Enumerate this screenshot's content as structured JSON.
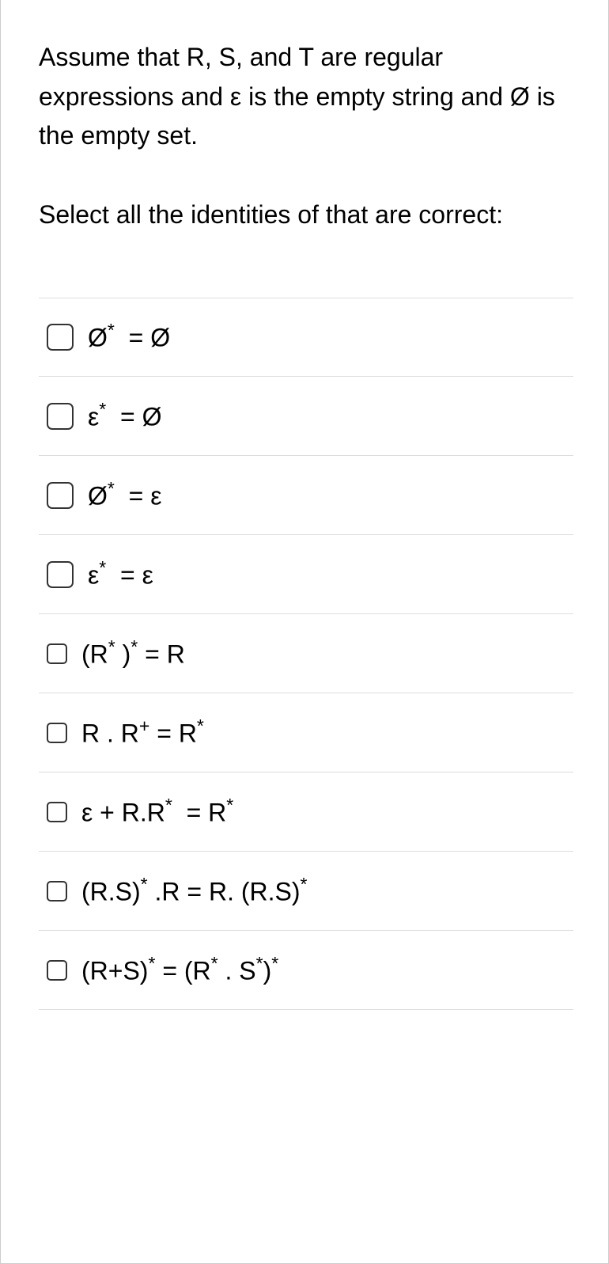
{
  "question": {
    "paragraph1": "Assume that R, S, and T are regular expressions and  ε is the empty string and Ø is the empty set.",
    "paragraph2": "Select all the identities of that are correct:"
  },
  "options": [
    {
      "html": "Ø<span class=\"sup\">*</span>&nbsp; = Ø",
      "checkbox_size": "large"
    },
    {
      "html": "ε<span class=\"sup\">*</span>&nbsp; = Ø",
      "checkbox_size": "large"
    },
    {
      "html": "Ø<span class=\"sup\">*</span>&nbsp; = ε",
      "checkbox_size": "large"
    },
    {
      "html": "ε<span class=\"sup\">*</span>&nbsp; = ε",
      "checkbox_size": "large"
    },
    {
      "html": "(R<span class=\"sup\">*</span> )<span class=\"sup\">*</span>&nbsp;= R",
      "checkbox_size": "small"
    },
    {
      "html": "R . R<span class=\"sup\">+</span>&nbsp;= R<span class=\"sup\">*</span>",
      "checkbox_size": "small"
    },
    {
      "html": "ε + R.R<span class=\"sup\">*</span>&nbsp; = R<span class=\"sup\">*</span>",
      "checkbox_size": "small"
    },
    {
      "html": "(R.S)<span class=\"sup\">*</span> .R = R. (R.S)<span class=\"sup\">*</span>",
      "checkbox_size": "small"
    },
    {
      "html": "(R+S)<span class=\"sup\">*</span> = (R<span class=\"sup\">*</span> . S<span class=\"sup\">*</span>)<span class=\"sup\">*</span>",
      "checkbox_size": "small"
    }
  ],
  "styles": {
    "text_color": "#000000",
    "background_color": "#ffffff",
    "border_color": "#cccccc",
    "divider_color": "#dddddd",
    "checkbox_border_color": "#333333",
    "base_font_size": 32
  }
}
